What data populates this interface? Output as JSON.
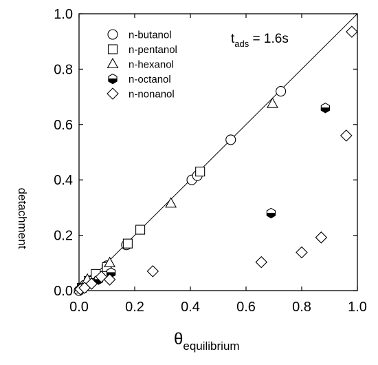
{
  "chart_data": {
    "type": "scatter",
    "title": "",
    "xlabel": {
      "symbol": "θ",
      "subscript": "equilibrium"
    },
    "ylabel": "detachment",
    "xlim": [
      0,
      1
    ],
    "ylim": [
      0,
      1
    ],
    "x_ticks": [
      "0.0",
      "0.2",
      "0.4",
      "0.6",
      "0.8",
      "1.0"
    ],
    "y_ticks": [
      "0.0",
      "0.2",
      "0.4",
      "0.6",
      "0.8",
      "1.0"
    ],
    "annotation": {
      "main": "t",
      "subscript": "ads",
      "value": " = 1.6s"
    },
    "legend_position": "top-left",
    "grid": false,
    "reference_line": {
      "type": "y=x"
    },
    "series": [
      {
        "name": "n-butanol",
        "marker": "circle-open",
        "points": [
          [
            0.0,
            0.0
          ],
          [
            0.02,
            0.02
          ],
          [
            0.05,
            0.04
          ],
          [
            0.1,
            0.09
          ],
          [
            0.17,
            0.165
          ],
          [
            0.405,
            0.4
          ],
          [
            0.425,
            0.415
          ],
          [
            0.545,
            0.545
          ],
          [
            0.725,
            0.72
          ]
        ]
      },
      {
        "name": "n-pentanol",
        "marker": "square-open",
        "points": [
          [
            0.01,
            0.01
          ],
          [
            0.035,
            0.035
          ],
          [
            0.06,
            0.06
          ],
          [
            0.1,
            0.085
          ],
          [
            0.175,
            0.17
          ],
          [
            0.22,
            0.22
          ],
          [
            0.435,
            0.43
          ]
        ]
      },
      {
        "name": "n-hexanol",
        "marker": "triangle-open",
        "points": [
          [
            0.0,
            0.005
          ],
          [
            0.03,
            0.04
          ],
          [
            0.11,
            0.1
          ],
          [
            0.33,
            0.315
          ],
          [
            0.695,
            0.675
          ]
        ]
      },
      {
        "name": "n-octanol",
        "marker": "hexagon-half",
        "points": [
          [
            0.01,
            0.01
          ],
          [
            0.07,
            0.04
          ],
          [
            0.115,
            0.065
          ],
          [
            0.69,
            0.28
          ],
          [
            0.885,
            0.66
          ]
        ]
      },
      {
        "name": "n-nonanol",
        "marker": "diamond-open",
        "points": [
          [
            0.005,
            0.005
          ],
          [
            0.02,
            0.01
          ],
          [
            0.045,
            0.025
          ],
          [
            0.08,
            0.05
          ],
          [
            0.11,
            0.04
          ],
          [
            0.265,
            0.07
          ],
          [
            0.655,
            0.103
          ],
          [
            0.8,
            0.138
          ],
          [
            0.87,
            0.192
          ],
          [
            0.96,
            0.56
          ],
          [
            0.98,
            0.935
          ]
        ]
      }
    ]
  }
}
